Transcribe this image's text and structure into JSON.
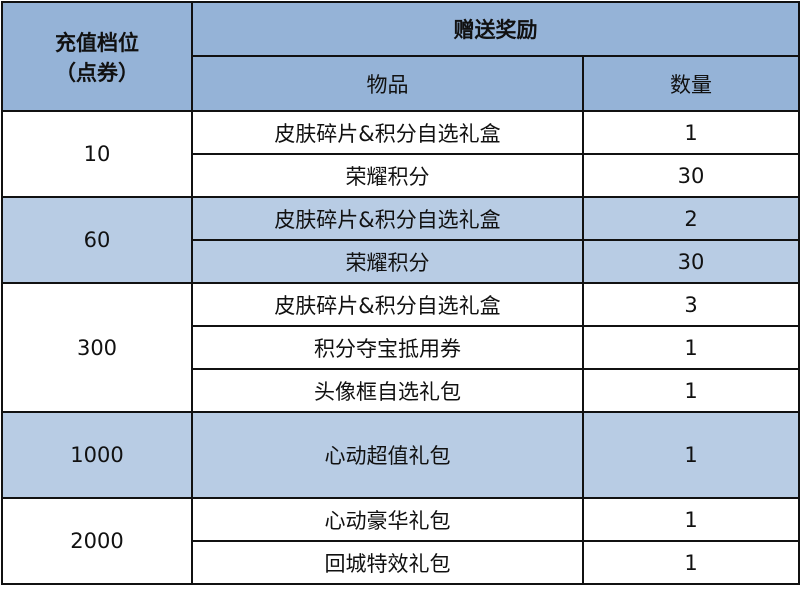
{
  "header": {
    "tier_line1": "充值档位",
    "tier_line2": "（点券）",
    "reward": "赠送奖励",
    "item": "物品",
    "quantity": "数量"
  },
  "colors": {
    "header": "#95b3d7",
    "highlight_row": "#b8cce4",
    "border": "#111111"
  },
  "tiers": [
    {
      "amount": "10",
      "highlight": false,
      "rewards": [
        {
          "item": "皮肤碎片&积分自选礼盒",
          "qty": "1"
        },
        {
          "item": "荣耀积分",
          "qty": "30"
        }
      ]
    },
    {
      "amount": "60",
      "highlight": true,
      "rewards": [
        {
          "item": "皮肤碎片&积分自选礼盒",
          "qty": "2"
        },
        {
          "item": "荣耀积分",
          "qty": "30"
        }
      ]
    },
    {
      "amount": "300",
      "highlight": false,
      "rewards": [
        {
          "item": "皮肤碎片&积分自选礼盒",
          "qty": "3"
        },
        {
          "item": "积分夺宝抵用券",
          "qty": "1"
        },
        {
          "item": "头像框自选礼包",
          "qty": "1"
        }
      ]
    },
    {
      "amount": "1000",
      "highlight": true,
      "rewards": [
        {
          "item": "心动超值礼包",
          "qty": "1"
        }
      ]
    },
    {
      "amount": "2000",
      "highlight": false,
      "rewards": [
        {
          "item": "心动豪华礼包",
          "qty": "1"
        },
        {
          "item": "回城特效礼包",
          "qty": "1"
        }
      ]
    }
  ]
}
